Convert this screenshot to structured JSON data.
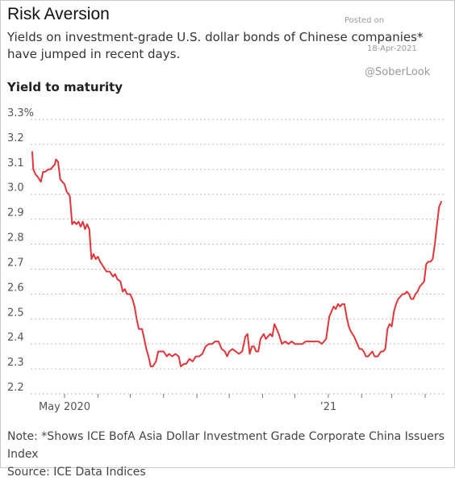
{
  "header": {
    "title": "Risk Aversion",
    "subtitle": "Yields on investment-grade U.S. dollar bonds of Chinese companies* have jumped in recent days.",
    "yaxis_title": "Yield to maturity"
  },
  "watermark": {
    "posted": "Posted on",
    "date": "18-Apr-2021",
    "handle": "@SoberLook"
  },
  "footer": {
    "note": "Note: *Shows ICE BofA Asia Dollar Investment Grade Corporate China Issuers Index",
    "source": "Source: ICE Data Indices"
  },
  "colors": {
    "line": "#e0363a",
    "grid": "#bdbdbd"
  },
  "chart_data": {
    "type": "line",
    "title": "Risk Aversion",
    "ylabel": "Yield to maturity",
    "ylim": [
      2.2,
      3.3
    ],
    "y_ticks": [
      {
        "value": 3.3,
        "label": "3.3%"
      },
      {
        "value": 3.2,
        "label": "3.2"
      },
      {
        "value": 3.1,
        "label": "3.1"
      },
      {
        "value": 3.0,
        "label": "3.0"
      },
      {
        "value": 2.9,
        "label": "2.9"
      },
      {
        "value": 2.8,
        "label": "2.8"
      },
      {
        "value": 2.7,
        "label": "2.7"
      },
      {
        "value": 2.6,
        "label": "2.6"
      },
      {
        "value": 2.5,
        "label": "2.5"
      },
      {
        "value": 2.4,
        "label": "2.4"
      },
      {
        "value": 2.3,
        "label": "2.3"
      },
      {
        "value": 2.2,
        "label": "2.2"
      }
    ],
    "grid": "horizontal dotted",
    "x_range": [
      "2020-04-01",
      "2021-04-16"
    ],
    "x_labels": [
      {
        "date": "2020-05-01",
        "label": "May 2020"
      },
      {
        "date": "2021-01-01",
        "label": "’21"
      }
    ],
    "x_ticks": [
      "2020-05-01",
      "2020-06-01",
      "2020-07-01",
      "2020-08-01",
      "2020-09-01",
      "2020-10-01",
      "2020-11-01",
      "2020-12-01",
      "2021-01-01",
      "2021-02-01",
      "2021-03-01",
      "2021-04-01"
    ],
    "series": [
      {
        "points": [
          [
            "2020-04-01",
            3.17
          ],
          [
            "2020-04-02",
            3.1
          ],
          [
            "2020-04-04",
            3.08
          ],
          [
            "2020-04-06",
            3.07
          ],
          [
            "2020-04-09",
            3.05
          ],
          [
            "2020-04-11",
            3.09
          ],
          [
            "2020-04-13",
            3.09
          ],
          [
            "2020-04-16",
            3.1
          ],
          [
            "2020-04-18",
            3.1
          ],
          [
            "2020-04-20",
            3.11
          ],
          [
            "2020-04-22",
            3.12
          ],
          [
            "2020-04-23",
            3.14
          ],
          [
            "2020-04-25",
            3.13
          ],
          [
            "2020-04-27",
            3.06
          ],
          [
            "2020-04-29",
            3.05
          ],
          [
            "2020-05-01",
            3.04
          ],
          [
            "2020-05-03",
            3.01
          ],
          [
            "2020-05-05",
            3.0
          ],
          [
            "2020-05-06",
            2.99
          ],
          [
            "2020-05-08",
            2.88
          ],
          [
            "2020-05-10",
            2.89
          ],
          [
            "2020-05-12",
            2.88
          ],
          [
            "2020-05-14",
            2.89
          ],
          [
            "2020-05-16",
            2.87
          ],
          [
            "2020-05-18",
            2.89
          ],
          [
            "2020-05-20",
            2.86
          ],
          [
            "2020-05-22",
            2.88
          ],
          [
            "2020-05-24",
            2.86
          ],
          [
            "2020-05-26",
            2.74
          ],
          [
            "2020-05-28",
            2.76
          ],
          [
            "2020-05-30",
            2.74
          ],
          [
            "2020-06-01",
            2.75
          ],
          [
            "2020-06-03",
            2.73
          ],
          [
            "2020-06-06",
            2.71
          ],
          [
            "2020-06-09",
            2.69
          ],
          [
            "2020-06-12",
            2.69
          ],
          [
            "2020-06-15",
            2.67
          ],
          [
            "2020-06-17",
            2.68
          ],
          [
            "2020-06-19",
            2.66
          ],
          [
            "2020-06-22",
            2.65
          ],
          [
            "2020-06-24",
            2.61
          ],
          [
            "2020-06-26",
            2.62
          ],
          [
            "2020-06-28",
            2.6
          ],
          [
            "2020-07-01",
            2.6
          ],
          [
            "2020-07-03",
            2.58
          ],
          [
            "2020-07-05",
            2.55
          ],
          [
            "2020-07-07",
            2.5
          ],
          [
            "2020-07-09",
            2.46
          ],
          [
            "2020-07-12",
            2.46
          ],
          [
            "2020-07-14",
            2.42
          ],
          [
            "2020-07-16",
            2.38
          ],
          [
            "2020-07-18",
            2.35
          ],
          [
            "2020-07-20",
            2.31
          ],
          [
            "2020-07-22",
            2.31
          ],
          [
            "2020-07-25",
            2.33
          ],
          [
            "2020-07-27",
            2.37
          ],
          [
            "2020-07-29",
            2.37
          ],
          [
            "2020-08-01",
            2.37
          ],
          [
            "2020-08-04",
            2.35
          ],
          [
            "2020-08-06",
            2.36
          ],
          [
            "2020-08-09",
            2.35
          ],
          [
            "2020-08-12",
            2.36
          ],
          [
            "2020-08-15",
            2.35
          ],
          [
            "2020-08-17",
            2.31
          ],
          [
            "2020-08-20",
            2.32
          ],
          [
            "2020-08-22",
            2.32
          ],
          [
            "2020-08-25",
            2.34
          ],
          [
            "2020-08-28",
            2.33
          ],
          [
            "2020-08-31",
            2.35
          ],
          [
            "2020-09-03",
            2.35
          ],
          [
            "2020-09-06",
            2.36
          ],
          [
            "2020-09-09",
            2.39
          ],
          [
            "2020-09-12",
            2.4
          ],
          [
            "2020-09-15",
            2.4
          ],
          [
            "2020-09-18",
            2.41
          ],
          [
            "2020-09-21",
            2.41
          ],
          [
            "2020-09-24",
            2.38
          ],
          [
            "2020-09-27",
            2.37
          ],
          [
            "2020-09-29",
            2.35
          ],
          [
            "2020-10-01",
            2.37
          ],
          [
            "2020-10-04",
            2.38
          ],
          [
            "2020-10-07",
            2.37
          ],
          [
            "2020-10-10",
            2.36
          ],
          [
            "2020-10-13",
            2.37
          ],
          [
            "2020-10-16",
            2.43
          ],
          [
            "2020-10-18",
            2.44
          ],
          [
            "2020-10-20",
            2.36
          ],
          [
            "2020-10-22",
            2.39
          ],
          [
            "2020-10-24",
            2.39
          ],
          [
            "2020-10-26",
            2.37
          ],
          [
            "2020-10-28",
            2.37
          ],
          [
            "2020-10-30",
            2.42
          ],
          [
            "2020-11-02",
            2.44
          ],
          [
            "2020-11-04",
            2.42
          ],
          [
            "2020-11-06",
            2.43
          ],
          [
            "2020-11-08",
            2.44
          ],
          [
            "2020-11-10",
            2.43
          ],
          [
            "2020-11-12",
            2.48
          ],
          [
            "2020-11-14",
            2.46
          ],
          [
            "2020-11-16",
            2.44
          ],
          [
            "2020-11-19",
            2.4
          ],
          [
            "2020-11-22",
            2.41
          ],
          [
            "2020-11-25",
            2.4
          ],
          [
            "2020-11-28",
            2.41
          ],
          [
            "2020-12-01",
            2.4
          ],
          [
            "2020-12-04",
            2.4
          ],
          [
            "2020-12-08",
            2.4
          ],
          [
            "2020-12-11",
            2.41
          ],
          [
            "2020-12-14",
            2.41
          ],
          [
            "2020-12-17",
            2.41
          ],
          [
            "2020-12-20",
            2.41
          ],
          [
            "2020-12-23",
            2.41
          ],
          [
            "2020-12-26",
            2.4
          ],
          [
            "2020-12-28",
            2.41
          ],
          [
            "2020-12-30",
            2.42
          ],
          [
            "2021-01-02",
            2.51
          ],
          [
            "2021-01-04",
            2.53
          ],
          [
            "2021-01-06",
            2.55
          ],
          [
            "2021-01-08",
            2.54
          ],
          [
            "2021-01-10",
            2.56
          ],
          [
            "2021-01-12",
            2.55
          ],
          [
            "2021-01-14",
            2.56
          ],
          [
            "2021-01-16",
            2.56
          ],
          [
            "2021-01-18",
            2.51
          ],
          [
            "2021-01-20",
            2.47
          ],
          [
            "2021-01-22",
            2.45
          ],
          [
            "2021-01-25",
            2.43
          ],
          [
            "2021-01-28",
            2.4
          ],
          [
            "2021-01-30",
            2.38
          ],
          [
            "2021-02-01",
            2.38
          ],
          [
            "2021-02-03",
            2.37
          ],
          [
            "2021-02-05",
            2.35
          ],
          [
            "2021-02-07",
            2.35
          ],
          [
            "2021-02-09",
            2.36
          ],
          [
            "2021-02-11",
            2.37
          ],
          [
            "2021-02-13",
            2.35
          ],
          [
            "2021-02-16",
            2.35
          ],
          [
            "2021-02-19",
            2.37
          ],
          [
            "2021-02-21",
            2.37
          ],
          [
            "2021-02-23",
            2.38
          ],
          [
            "2021-02-25",
            2.46
          ],
          [
            "2021-02-27",
            2.48
          ],
          [
            "2021-03-01",
            2.47
          ],
          [
            "2021-03-03",
            2.53
          ],
          [
            "2021-03-05",
            2.56
          ],
          [
            "2021-03-07",
            2.58
          ],
          [
            "2021-03-09",
            2.59
          ],
          [
            "2021-03-11",
            2.6
          ],
          [
            "2021-03-13",
            2.6
          ],
          [
            "2021-03-15",
            2.61
          ],
          [
            "2021-03-17",
            2.6
          ],
          [
            "2021-03-19",
            2.58
          ],
          [
            "2021-03-21",
            2.58
          ],
          [
            "2021-03-23",
            2.6
          ],
          [
            "2021-03-25",
            2.61
          ],
          [
            "2021-03-27",
            2.63
          ],
          [
            "2021-03-29",
            2.64
          ],
          [
            "2021-03-31",
            2.65
          ],
          [
            "2021-04-02",
            2.72
          ],
          [
            "2021-04-04",
            2.73
          ],
          [
            "2021-04-06",
            2.73
          ],
          [
            "2021-04-08",
            2.74
          ],
          [
            "2021-04-10",
            2.8
          ],
          [
            "2021-04-12",
            2.88
          ],
          [
            "2021-04-14",
            2.95
          ],
          [
            "2021-04-16",
            2.97
          ]
        ]
      }
    ]
  }
}
